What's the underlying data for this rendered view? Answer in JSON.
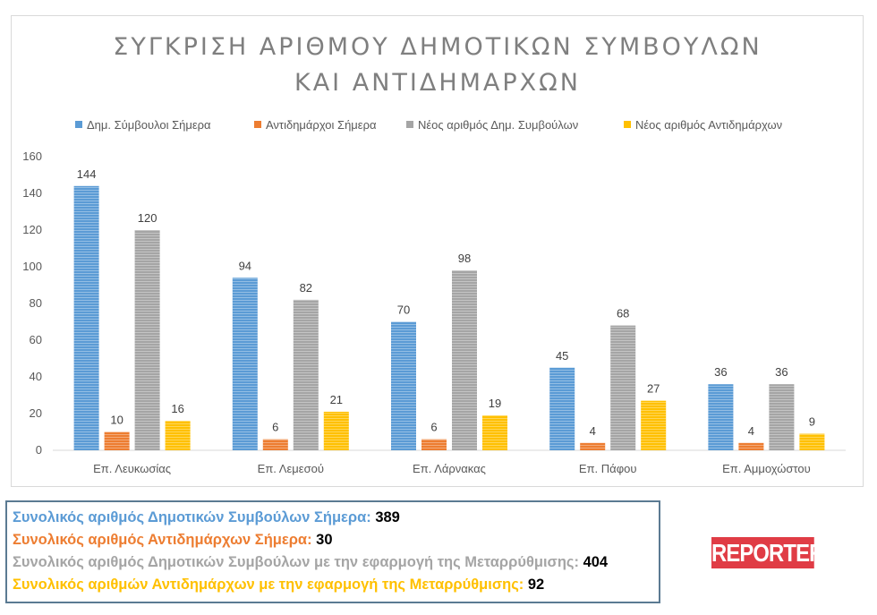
{
  "chart_data": {
    "type": "bar",
    "title": [
      "ΣΥΓΚΡΙΣΗ ΑΡΙΘΜΟΥ ΔΗΜΟΤΙΚΩΝ ΣΥΜΒΟΥΛΩΝ",
      "ΚΑΙ ΑΝΤΙΔΗΜΑΡΧΩΝ"
    ],
    "categories": [
      "Επ. Λευκωσίας",
      "Επ. Λεμεσού",
      "Επ. Λάρνακας",
      "Επ. Πάφου",
      "Επ. Αμμοχώστου"
    ],
    "series": [
      {
        "name": "Δημ. Σύμβουλοι Σήμερα",
        "values": [
          144,
          94,
          70,
          45,
          36
        ],
        "color": "#5b9bd5"
      },
      {
        "name": "Αντιδημάρχοι Σήμερα",
        "values": [
          10,
          6,
          6,
          4,
          4
        ],
        "color": "#ed7d31"
      },
      {
        "name": "Νέος αριθμός Δημ. Συμβούλων",
        "values": [
          120,
          82,
          98,
          68,
          36
        ],
        "color": "#a5a5a5"
      },
      {
        "name": "Νέος αριθμός Αντιδημάρχων",
        "values": [
          16,
          21,
          19,
          27,
          9
        ],
        "color": "#ffc000"
      }
    ],
    "ylim": [
      0,
      160
    ],
    "yticks": [
      0,
      20,
      40,
      60,
      80,
      100,
      120,
      140,
      160
    ],
    "legend_position": "top",
    "grid": false,
    "data_labels": true
  },
  "summary": [
    {
      "label": "Συνολικός αριθμός Δημοτικών Συμβούλων Σήμερα:",
      "value": "389",
      "color": "#5b9bd5"
    },
    {
      "label": "Συνολικός αριθμός Αντιδημάρχων Σήμερα:",
      "value": "30",
      "color": "#ed7d31"
    },
    {
      "label": "Συνολικός αριθμός Δημοτικών Συμβούλων με την εφαρμογή της Μεταρρύθμισης:",
      "value": "404",
      "color": "#a5a5a5"
    },
    {
      "label": "Συνολικός αριθμών Αντιδημάρχων με την εφαρμογή της Μεταρρύθμισης:",
      "value": "92",
      "color": "#ffc000"
    }
  ],
  "logo": {
    "text": "REPORTER",
    "color": "#e03c45"
  }
}
